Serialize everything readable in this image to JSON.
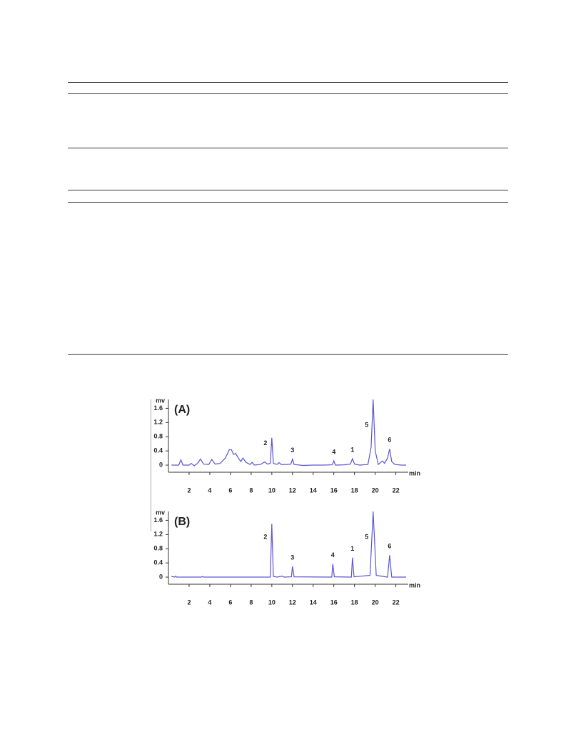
{
  "chart_data": [
    {
      "type": "line",
      "panel_label": "(A)",
      "y_label": "mv",
      "x_label": "min",
      "x": [
        0.3,
        1.0,
        1.2,
        1.4,
        2.0,
        2.2,
        2.5,
        2.8,
        3.1,
        3.4,
        3.9,
        4.2,
        4.5,
        5.0,
        5.5,
        5.9,
        6.1,
        6.3,
        6.5,
        6.8,
        7.0,
        7.2,
        7.5,
        7.9,
        8.1,
        8.3,
        8.9,
        9.3,
        9.6,
        9.85,
        10.0,
        10.15,
        10.5,
        10.7,
        10.9,
        11.5,
        11.85,
        12.0,
        12.15,
        13.0,
        14.0,
        15.0,
        15.85,
        16.0,
        16.15,
        17.0,
        17.6,
        17.8,
        18.0,
        18.5,
        19.3,
        19.6,
        19.8,
        20.0,
        20.3,
        20.7,
        20.9,
        21.2,
        21.4,
        21.6,
        21.9,
        22.5,
        23.0
      ],
      "series": [
        {
          "color": "#5a55d6",
          "values": [
            0.0,
            0.0,
            0.15,
            0.0,
            0.0,
            0.05,
            -0.02,
            0.05,
            0.17,
            0.03,
            0.02,
            0.16,
            0.03,
            0.05,
            0.2,
            0.44,
            0.43,
            0.3,
            0.33,
            0.18,
            0.1,
            0.2,
            0.08,
            0.02,
            0.08,
            0.0,
            0.02,
            0.09,
            0.03,
            0.05,
            0.77,
            0.05,
            0.02,
            0.07,
            0.02,
            0.02,
            0.03,
            0.17,
            0.02,
            -0.01,
            0.0,
            0.0,
            0.01,
            0.12,
            0.0,
            0.01,
            0.03,
            0.18,
            0.03,
            0.0,
            0.02,
            0.5,
            1.85,
            0.4,
            0.02,
            0.12,
            0.05,
            0.2,
            0.46,
            0.1,
            0.02,
            0.0,
            0.0
          ]
        }
      ],
      "xlim": [
        0,
        23.2
      ],
      "ylim": [
        -0.2,
        1.85
      ],
      "xticks": [
        2,
        4,
        6,
        8,
        10,
        12,
        14,
        16,
        18,
        20,
        22
      ],
      "yticks": [
        0,
        0.4,
        0.8,
        1.2,
        1.6
      ],
      "annotations": [
        {
          "text": "2",
          "x": 10.0
        },
        {
          "text": "3",
          "x": 12.0
        },
        {
          "text": "4",
          "x": 16.0
        },
        {
          "text": "1",
          "x": 17.8
        },
        {
          "text": "5",
          "x": 19.8
        },
        {
          "text": "6",
          "x": 21.4
        }
      ]
    },
    {
      "type": "line",
      "panel_label": "(B)",
      "y_label": "mv",
      "x_label": "min",
      "x": [
        0.3,
        0.6,
        0.7,
        0.8,
        3.2,
        3.3,
        3.4,
        9.85,
        10.0,
        10.15,
        10.5,
        11.0,
        11.2,
        11.9,
        12.0,
        12.15,
        15.8,
        15.9,
        16.05,
        17.7,
        17.8,
        17.95,
        19.5,
        19.8,
        20.1,
        21.2,
        21.4,
        21.6,
        23.0
      ],
      "series": [
        {
          "color": "#5a55d6",
          "values": [
            0.02,
            0.0,
            0.03,
            0.0,
            0.0,
            0.02,
            0.0,
            0.0,
            1.5,
            0.02,
            0.0,
            0.03,
            0.0,
            0.01,
            0.3,
            0.01,
            0.0,
            0.37,
            0.01,
            0.0,
            0.55,
            0.01,
            0.05,
            1.85,
            0.05,
            0.0,
            0.62,
            0.0,
            0.0
          ]
        }
      ],
      "xlim": [
        0,
        23.2
      ],
      "ylim": [
        -0.2,
        1.85
      ],
      "xticks": [
        2,
        4,
        6,
        8,
        10,
        12,
        14,
        16,
        18,
        20,
        22
      ],
      "yticks": [
        0,
        0.4,
        0.8,
        1.2,
        1.6
      ],
      "annotations": [
        {
          "text": "2",
          "x": 10.0
        },
        {
          "text": "3",
          "x": 12.0
        },
        {
          "text": "4",
          "x": 15.9
        },
        {
          "text": "1",
          "x": 17.8
        },
        {
          "text": "5",
          "x": 19.8
        },
        {
          "text": "6",
          "x": 21.4
        }
      ]
    }
  ]
}
